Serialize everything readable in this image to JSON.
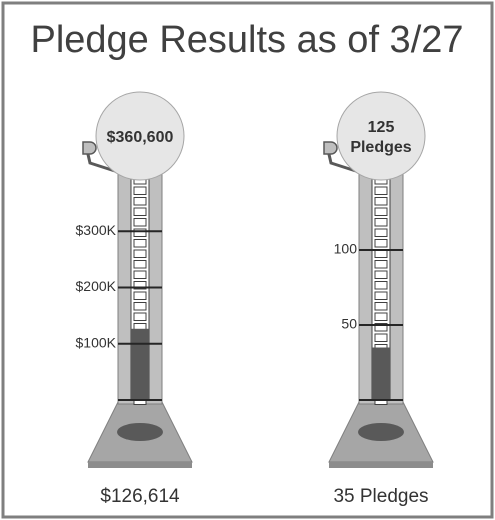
{
  "title": "Pledge Results as of 3/27",
  "chart_data": [
    {
      "type": "thermometer",
      "goal_label": [
        "$360,600"
      ],
      "values": [
        126614
      ],
      "value_labels": [
        "$126,614"
      ],
      "ylim": [
        0,
        400000
      ],
      "yticks": [
        {
          "value": 100000,
          "label": "$100K"
        },
        {
          "value": 200000,
          "label": "$200K"
        },
        {
          "value": 300000,
          "label": "$300K"
        }
      ],
      "color": "#595959"
    },
    {
      "type": "thermometer",
      "goal_label": [
        "125",
        "Pledges"
      ],
      "values": [
        35
      ],
      "value_labels": [
        "35 Pledges"
      ],
      "ylim": [
        0,
        150
      ],
      "yticks": [
        50,
        100
      ],
      "color": "#595959"
    }
  ]
}
